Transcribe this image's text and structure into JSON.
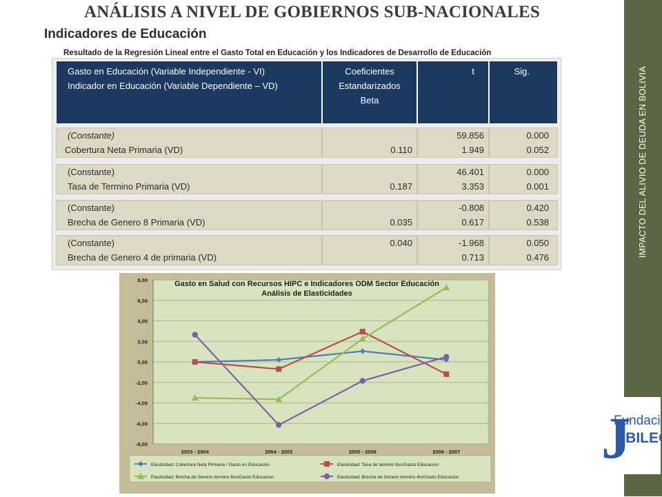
{
  "slide": {
    "title": "ANÁLISIS A NIVEL DE GOBIERNOS SUB-NACIONALES",
    "subtitle": "Indicadores de Educación",
    "side_text": "IMPACTO DEL ALIVIO DE DEUDA EN BOLIVIA",
    "logo_text": "Fundación",
    "logo_text2": "UBILEO",
    "logo_letter": "J",
    "colors": {
      "bar": "#5a6644",
      "header": "#1c3962",
      "body": "#ddd9c4",
      "logo": "#2b5aa6"
    }
  },
  "table": {
    "caption": "Resultado de la Regresión Lineal entre el Gasto Total en Educación y los Indicadores de Desarrollo de Educación",
    "header": {
      "col1_line1": "Gasto en Educación (Variable Independiente - VI)",
      "col1_line2": "Indicador  en Educación (Variable Dependiente – VD)",
      "col2_line1": "Coeficientes",
      "col2_line2": "Estandarizados",
      "col2_line3": "Beta",
      "col3": "t",
      "col4": "Sig."
    },
    "groups": [
      {
        "label1": "(Constante)",
        "label2": "Cobertura Neta Primaria (VD)",
        "beta1": "",
        "beta2": "0.110",
        "t1": "59.856",
        "t2": "1.949",
        "sig1": "0.000",
        "sig2": "0.052"
      },
      {
        "label1": "(Constante)",
        "label2": "Tasa de Termino Primaria (VD)",
        "beta1": "",
        "beta2": "0.187",
        "t1": "46.401",
        "t2": "3.353",
        "sig1": "0.000",
        "sig2": "0.001"
      },
      {
        "label1": "(Constante)",
        "label2": "Brecha de Genero 8 Primaria (VD)",
        "beta1": "",
        "beta2": "0.035",
        "t1": "-0.808",
        "t2": "0.617",
        "sig1": "0.420",
        "sig2": "0.538"
      },
      {
        "label1": "(Constante)",
        "label2": "Brecha de Genero 4 de primaria (VD)",
        "beta1": "0.040",
        "beta2": "",
        "t1": "-1.968",
        "t2": "0.713",
        "sig1": "0.050",
        "sig2": "0.476"
      }
    ]
  },
  "chart_data": {
    "type": "line",
    "title": "Gasto en Salud con Recursos HIPC e Indicadores ODM Sector Educación",
    "subtitle": "Análisis de Elasticidades",
    "categories": [
      "2003 - 2004",
      "2004 - 2005",
      "2005 - 2006",
      "2006 - 2007"
    ],
    "ylim": [
      -8,
      8
    ],
    "yticks": [
      "8,00",
      "6,00",
      "4,00",
      "2,00",
      "0,00",
      "-2,00",
      "-4,00",
      "-6,00",
      "-8,00"
    ],
    "ytick_values": [
      8,
      6,
      4,
      2,
      0,
      -2,
      -4,
      -6,
      -8
    ],
    "grid": true,
    "legend_position": "bottom",
    "series": [
      {
        "name": "Elasticidad: Cobertura Neta Primaria / Gasto en Educación",
        "values": [
          0.0,
          0.2,
          1.05,
          0.2
        ],
        "color": "#4a7ebf",
        "marker": "diamond"
      },
      {
        "name": "Elasticidad:  Tasa de termino 8vo/Gasto Educacion",
        "values": [
          0.0,
          -0.7,
          2.95,
          -1.2
        ],
        "color": "#be4b48",
        "marker": "square"
      },
      {
        "name": "Elasticidad: Brecha de Genero termino 8vo/Gasto Educacion",
        "values": [
          -3.5,
          -3.65,
          2.25,
          7.25
        ],
        "color": "#9bbb59",
        "marker": "triangle"
      },
      {
        "name": "Elasticidad:  Brecha de Genero termino 4to/Gasto Educacion",
        "values": [
          2.65,
          -6.15,
          -1.85,
          0.5
        ],
        "color": "#7f60a8",
        "marker": "circle"
      }
    ]
  }
}
